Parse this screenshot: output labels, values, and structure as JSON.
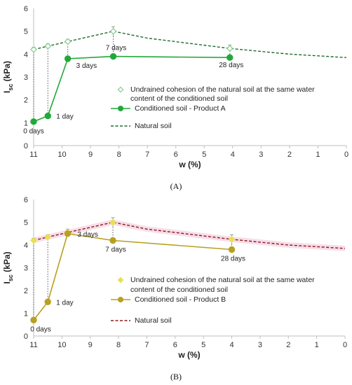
{
  "chart_data": [
    {
      "type": "line",
      "panel_label": "(A)",
      "xlabel": "w (%)",
      "ylabel_main": "I",
      "ylabel_sub": "sc",
      "ylabel_unit": " (kPa)",
      "xlim": [
        11,
        0
      ],
      "ylim": [
        0,
        6
      ],
      "xticks": [
        "11",
        "10",
        "9",
        "8",
        "7",
        "6",
        "5",
        "4",
        "3",
        "2",
        "1",
        "0"
      ],
      "yticks": [
        "0",
        "1",
        "2",
        "3",
        "4",
        "5",
        "6"
      ],
      "series": [
        {
          "name": "Undrained cohesion of the natural soil at the same water content of the conditioned soil",
          "legend_line1": "Undrained cohesion of the natural soil at the same water",
          "legend_line2": "content of the conditioned soil",
          "kind": "markers",
          "color": "#7fcf8f",
          "points": [
            {
              "x": 11.0,
              "y": 4.2,
              "err": 0.1
            },
            {
              "x": 10.5,
              "y": 4.35,
              "err": 0.1
            },
            {
              "x": 9.8,
              "y": 4.55,
              "err": 0.1
            },
            {
              "x": 8.2,
              "y": 5.0,
              "err": 0.2
            },
            {
              "x": 4.1,
              "y": 4.25,
              "err": 0.15
            }
          ]
        },
        {
          "name": "Conditioned soil - Product A",
          "kind": "line-markers",
          "color": "#22a83a",
          "points": [
            {
              "x": 11.0,
              "y": 1.05,
              "label": "0 days"
            },
            {
              "x": 10.5,
              "y": 1.3,
              "label": "1 day"
            },
            {
              "x": 9.8,
              "y": 3.8,
              "label": "3 days"
            },
            {
              "x": 8.2,
              "y": 3.9,
              "label": "7 days"
            },
            {
              "x": 4.1,
              "y": 3.85,
              "label": "28 days"
            }
          ]
        },
        {
          "name": "Natural soil",
          "kind": "dashed",
          "color": "#1e6b2a",
          "points": [
            {
              "x": 11.0,
              "y": 4.2
            },
            {
              "x": 10.5,
              "y": 4.35
            },
            {
              "x": 9.8,
              "y": 4.55
            },
            {
              "x": 8.2,
              "y": 5.0
            },
            {
              "x": 7.0,
              "y": 4.7
            },
            {
              "x": 4.1,
              "y": 4.25
            },
            {
              "x": 2.0,
              "y": 4.0
            },
            {
              "x": 0.0,
              "y": 3.85
            }
          ]
        }
      ]
    },
    {
      "type": "line",
      "panel_label": "(B)",
      "xlabel": "w (%)",
      "ylabel_main": "I",
      "ylabel_sub": "sc",
      "ylabel_unit": " (kPa)",
      "xlim": [
        11,
        0
      ],
      "ylim": [
        0,
        6
      ],
      "xticks": [
        "11",
        "10",
        "9",
        "8",
        "7",
        "6",
        "5",
        "4",
        "3",
        "2",
        "1",
        "0"
      ],
      "yticks": [
        "0",
        "1",
        "2",
        "3",
        "4",
        "5",
        "6"
      ],
      "series": [
        {
          "name": "Undrained cohesion of the natural soil at the same water content of the conditioned soil",
          "legend_line1": "Undrained cohesion of the natural soil at the same water",
          "legend_line2": "content of the conditioned soil",
          "kind": "markers",
          "color": "#e8e050",
          "points": [
            {
              "x": 11.0,
              "y": 4.2,
              "err": 0.1
            },
            {
              "x": 10.5,
              "y": 4.35,
              "err": 0.1
            },
            {
              "x": 9.8,
              "y": 4.55,
              "err": 0.15
            },
            {
              "x": 8.2,
              "y": 5.0,
              "err": 0.2
            },
            {
              "x": 4.0,
              "y": 4.25,
              "err": 0.2
            }
          ]
        },
        {
          "name": "Conditioned soil - Product B",
          "kind": "line-markers",
          "color": "#b8a020",
          "points": [
            {
              "x": 11.0,
              "y": 0.7,
              "label": "0 days"
            },
            {
              "x": 10.5,
              "y": 1.5,
              "label": "1 day"
            },
            {
              "x": 9.8,
              "y": 4.5,
              "label": "3 days"
            },
            {
              "x": 8.2,
              "y": 4.2,
              "label": "7 days"
            },
            {
              "x": 4.0,
              "y": 3.8,
              "label": "28 days"
            }
          ]
        },
        {
          "name": "Natural soil",
          "kind": "dashed",
          "color": "#8b1a1a",
          "band_color": "#f4cfe0",
          "points": [
            {
              "x": 11.0,
              "y": 4.2
            },
            {
              "x": 10.5,
              "y": 4.35
            },
            {
              "x": 9.8,
              "y": 4.55
            },
            {
              "x": 8.2,
              "y": 5.0
            },
            {
              "x": 7.0,
              "y": 4.7
            },
            {
              "x": 4.0,
              "y": 4.25
            },
            {
              "x": 2.0,
              "y": 4.0
            },
            {
              "x": 0.0,
              "y": 3.85
            }
          ]
        }
      ]
    }
  ]
}
